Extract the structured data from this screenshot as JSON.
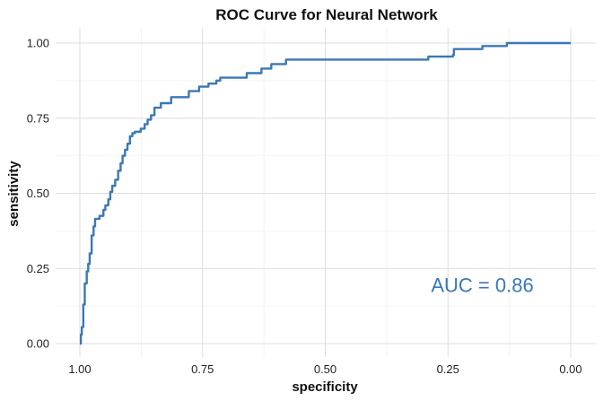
{
  "chart_data": {
    "type": "line",
    "title": "ROC Curve for Neural Network",
    "xlabel": "specificity",
    "ylabel": "sensitivity",
    "xlim": [
      1.0,
      0.0
    ],
    "ylim": [
      0.0,
      1.0
    ],
    "x_reversed": true,
    "grid": true,
    "x_ticks": [
      "1.00",
      "0.75",
      "0.50",
      "0.25",
      "0.00"
    ],
    "y_ticks": [
      "0.00",
      "0.25",
      "0.50",
      "0.75",
      "1.00"
    ],
    "series": [
      {
        "color": "#3b78b4",
        "x": [
          1.0,
          0.998,
          0.996,
          0.993,
          0.99,
          0.986,
          0.983,
          0.98,
          0.976,
          0.972,
          0.969,
          0.963,
          0.96,
          0.952,
          0.948,
          0.942,
          0.938,
          0.934,
          0.928,
          0.922,
          0.917,
          0.913,
          0.908,
          0.903,
          0.898,
          0.893,
          0.888,
          0.883,
          0.876,
          0.868,
          0.862,
          0.855,
          0.848,
          0.843,
          0.835,
          0.826,
          0.814,
          0.796,
          0.778,
          0.757,
          0.738,
          0.722,
          0.714,
          0.7,
          0.68,
          0.66,
          0.63,
          0.61,
          0.58,
          0.55,
          0.52,
          0.5,
          0.42,
          0.4,
          0.35,
          0.3,
          0.29,
          0.24,
          0.238,
          0.2,
          0.18,
          0.13,
          0.08,
          0.0
        ],
        "y": [
          0.0,
          0.03,
          0.055,
          0.13,
          0.2,
          0.24,
          0.265,
          0.3,
          0.36,
          0.39,
          0.415,
          0.415,
          0.425,
          0.445,
          0.46,
          0.48,
          0.505,
          0.525,
          0.545,
          0.575,
          0.6,
          0.625,
          0.645,
          0.665,
          0.69,
          0.7,
          0.705,
          0.705,
          0.715,
          0.73,
          0.745,
          0.76,
          0.785,
          0.785,
          0.8,
          0.8,
          0.82,
          0.82,
          0.84,
          0.855,
          0.865,
          0.875,
          0.885,
          0.885,
          0.885,
          0.9,
          0.915,
          0.93,
          0.945,
          0.945,
          0.945,
          0.945,
          0.945,
          0.945,
          0.945,
          0.945,
          0.955,
          0.96,
          0.98,
          0.98,
          0.99,
          1.0,
          1.0,
          1.0
        ]
      }
    ],
    "annotations": [
      {
        "text": "AUC = 0.86",
        "x": 0.18,
        "y": 0.195,
        "color": "#3b78b4"
      }
    ]
  }
}
